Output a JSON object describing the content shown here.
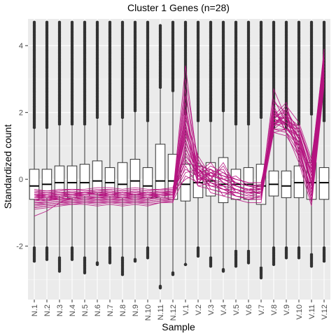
{
  "chart_data": {
    "type": "boxplot",
    "title": "Cluster 1 Genes (n=28)",
    "xlabel": "Sample",
    "ylabel": "Standardized count",
    "ylim": [
      -3.6,
      4.8
    ],
    "yticks": [
      -2,
      0,
      2,
      4
    ],
    "grid": true,
    "background": "#ebebeb",
    "line_color": "#b5137f",
    "categories": [
      "N.1",
      "N.2",
      "N.3",
      "N.4",
      "N.5",
      "N.6",
      "N.7",
      "N.8",
      "N.9",
      "N.10",
      "N.11",
      "N.12",
      "V.1",
      "V.2",
      "V.3",
      "V.4",
      "V.5",
      "V.6",
      "V.7",
      "V.8",
      "V.9",
      "V.10",
      "V.11",
      "V.12"
    ],
    "boxes": [
      {
        "q1": -0.6,
        "median": -0.2,
        "q3": 0.3,
        "whisker_low": -2.0,
        "whisker_high": 1.5,
        "outlier_low": -2.45,
        "outlier_high": 4.7
      },
      {
        "q1": -0.55,
        "median": -0.15,
        "q3": 0.3,
        "whisker_low": -2.0,
        "whisker_high": 1.5,
        "outlier_low": -2.4,
        "outlier_high": 4.7
      },
      {
        "q1": -0.5,
        "median": -0.1,
        "q3": 0.4,
        "whisker_low": -2.3,
        "whisker_high": 1.6,
        "outlier_low": -2.75,
        "outlier_high": 4.7
      },
      {
        "q1": -0.55,
        "median": -0.1,
        "q3": 0.4,
        "whisker_low": -2.0,
        "whisker_high": 1.6,
        "outlier_low": -2.4,
        "outlier_high": 4.7
      },
      {
        "q1": -0.5,
        "median": -0.1,
        "q3": 0.45,
        "whisker_low": -2.3,
        "whisker_high": 1.6,
        "outlier_low": -2.8,
        "outlier_high": 4.7
      },
      {
        "q1": -0.4,
        "median": -0.05,
        "q3": 0.55,
        "whisker_low": -2.5,
        "whisker_high": 1.8,
        "outlier_low": -2.5,
        "outlier_high": 4.7
      },
      {
        "q1": -0.5,
        "median": -0.1,
        "q3": 0.35,
        "whisker_low": -2.0,
        "whisker_high": 1.6,
        "outlier_low": -2.5,
        "outlier_high": 4.7
      },
      {
        "q1": -0.55,
        "median": -0.15,
        "q3": 0.5,
        "whisker_low": -2.3,
        "whisker_high": 1.8,
        "outlier_low": -2.85,
        "outlier_high": 4.7
      },
      {
        "q1": -0.45,
        "median": -0.05,
        "q3": 0.6,
        "whisker_low": -2.4,
        "whisker_high": 2.0,
        "outlier_low": -2.4,
        "outlier_high": 4.7
      },
      {
        "q1": -0.55,
        "median": -0.2,
        "q3": 0.35,
        "whisker_low": -2.0,
        "whisker_high": 1.7,
        "outlier_low": -2.35,
        "outlier_high": 4.7
      },
      {
        "q1": -0.55,
        "median": -0.05,
        "q3": 1.05,
        "whisker_low": -3.2,
        "whisker_high": 2.7,
        "outlier_low": -3.2,
        "outlier_high": 4.6
      },
      {
        "q1": -0.6,
        "median": -0.05,
        "q3": 0.75,
        "whisker_low": -2.8,
        "whisker_high": 2.6,
        "outlier_low": -2.8,
        "outlier_high": 4.7
      },
      {
        "q1": -0.65,
        "median": -0.15,
        "q3": 0.45,
        "whisker_low": -2.5,
        "whisker_high": 1.9,
        "outlier_low": -2.55,
        "outlier_high": 4.7
      },
      {
        "q1": -0.55,
        "median": -0.1,
        "q3": 0.4,
        "whisker_low": -2.0,
        "whisker_high": 1.7,
        "outlier_low": -2.3,
        "outlier_high": 4.7
      },
      {
        "q1": -0.5,
        "median": -0.05,
        "q3": 0.5,
        "whisker_low": -2.3,
        "whisker_high": 1.7,
        "outlier_low": -2.6,
        "outlier_high": 4.7
      },
      {
        "q1": -0.7,
        "median": -0.15,
        "q3": 0.65,
        "whisker_low": -2.7,
        "whisker_high": 2.0,
        "outlier_low": -2.7,
        "outlier_high": 4.7
      },
      {
        "q1": -0.6,
        "median": -0.15,
        "q3": 0.3,
        "whisker_low": -2.1,
        "whisker_high": 1.6,
        "outlier_low": -2.6,
        "outlier_high": 4.7
      },
      {
        "q1": -0.6,
        "median": -0.15,
        "q3": 0.35,
        "whisker_low": -2.1,
        "whisker_high": 1.6,
        "outlier_low": -2.5,
        "outlier_high": 4.7
      },
      {
        "q1": -0.75,
        "median": -0.2,
        "q3": 0.45,
        "whisker_low": -2.6,
        "whisker_high": 1.8,
        "outlier_low": -2.95,
        "outlier_high": 4.7
      },
      {
        "q1": -0.5,
        "median": -0.15,
        "q3": 0.25,
        "whisker_low": -2.0,
        "whisker_high": 1.5,
        "outlier_low": -2.55,
        "outlier_high": 4.7
      },
      {
        "q1": -0.55,
        "median": -0.2,
        "q3": 0.25,
        "whisker_low": -2.0,
        "whisker_high": 1.5,
        "outlier_low": -2.35,
        "outlier_high": 4.7
      },
      {
        "q1": -0.55,
        "median": -0.1,
        "q3": 0.4,
        "whisker_low": -2.0,
        "whisker_high": 1.6,
        "outlier_low": -2.35,
        "outlier_high": 4.7
      },
      {
        "q1": -0.6,
        "median": -0.1,
        "q3": 0.5,
        "whisker_low": -2.2,
        "whisker_high": 1.9,
        "outlier_low": -2.6,
        "outlier_high": 4.7
      },
      {
        "q1": -0.6,
        "median": -0.1,
        "q3": 0.35,
        "whisker_low": -2.0,
        "whisker_high": 1.7,
        "outlier_low": -2.45,
        "outlier_high": 4.7
      }
    ],
    "profile_lines": [
      [
        -0.55,
        -0.55,
        -0.5,
        -0.5,
        -0.45,
        -0.45,
        -0.5,
        -0.5,
        -0.45,
        -0.5,
        -0.45,
        -0.45,
        3.4,
        0.3,
        0.1,
        0.0,
        -0.2,
        -0.3,
        -0.3,
        1.8,
        2.1,
        1.4,
        0.2,
        3.6
      ],
      [
        -0.6,
        -0.6,
        -0.55,
        -0.5,
        -0.5,
        -0.55,
        -0.5,
        -0.55,
        -0.5,
        -0.55,
        -0.5,
        -0.5,
        3.0,
        0.5,
        0.2,
        -0.1,
        -0.3,
        -0.4,
        -0.4,
        2.7,
        1.8,
        1.2,
        -0.1,
        3.9
      ],
      [
        -0.45,
        -0.5,
        -0.45,
        -0.4,
        -0.45,
        -0.4,
        -0.4,
        -0.45,
        -0.4,
        -0.45,
        -0.4,
        -0.4,
        2.7,
        0.1,
        0.4,
        0.2,
        -0.1,
        -0.2,
        -0.2,
        2.0,
        1.6,
        1.5,
        0.4,
        3.5
      ],
      [
        -0.7,
        -0.65,
        -0.6,
        -0.6,
        -0.55,
        -0.6,
        -0.6,
        -0.6,
        -0.55,
        -0.6,
        -0.55,
        -0.55,
        2.5,
        0.6,
        -0.1,
        -0.3,
        -0.4,
        -0.5,
        -0.5,
        1.5,
        1.4,
        1.0,
        -0.5,
        3.2
      ],
      [
        -0.5,
        -0.55,
        -0.5,
        -0.45,
        -0.5,
        -0.5,
        -0.45,
        -0.5,
        -0.45,
        -0.5,
        -0.45,
        -0.45,
        2.3,
        0.0,
        0.0,
        0.4,
        -0.2,
        -0.3,
        -0.3,
        1.7,
        1.9,
        1.2,
        0.1,
        3.4
      ],
      [
        -0.8,
        -0.75,
        -0.7,
        -0.65,
        -0.65,
        -0.7,
        -0.65,
        -0.7,
        -0.65,
        -0.7,
        -0.65,
        -0.6,
        2.1,
        0.2,
        -0.2,
        -0.2,
        -0.5,
        -0.6,
        -0.5,
        2.3,
        2.0,
        0.6,
        -0.6,
        3.0
      ],
      [
        -0.4,
        -0.4,
        -0.4,
        -0.35,
        -0.4,
        -0.35,
        -0.35,
        -0.4,
        -0.35,
        -0.4,
        -0.35,
        -0.35,
        2.0,
        -0.1,
        0.3,
        0.1,
        0.0,
        -0.1,
        -0.1,
        1.6,
        1.7,
        1.6,
        0.5,
        3.7
      ],
      [
        -0.65,
        -0.6,
        -0.6,
        -0.55,
        -0.55,
        -0.6,
        -0.55,
        -0.6,
        -0.55,
        -0.6,
        -0.5,
        -0.5,
        1.9,
        0.4,
        -0.3,
        -0.4,
        -0.4,
        -0.5,
        -0.4,
        1.9,
        2.3,
        0.8,
        -0.3,
        3.3
      ],
      [
        -0.55,
        -0.5,
        -0.55,
        -0.5,
        -0.5,
        -0.5,
        -0.5,
        -0.5,
        -0.5,
        -0.5,
        -0.45,
        -0.45,
        1.8,
        0.7,
        0.1,
        -0.5,
        -0.3,
        -0.4,
        -0.3,
        1.4,
        1.5,
        1.3,
        -0.2,
        3.1
      ],
      [
        -0.75,
        -0.7,
        -0.65,
        -0.6,
        -0.6,
        -0.65,
        -0.6,
        -0.65,
        -0.6,
        -0.65,
        -0.6,
        -0.55,
        1.7,
        0.0,
        0.2,
        0.3,
        -0.4,
        -0.3,
        -0.45,
        2.1,
        1.6,
        0.9,
        -0.4,
        3.8
      ],
      [
        -0.35,
        -0.4,
        -0.35,
        -0.3,
        -0.35,
        -0.3,
        -0.3,
        -0.35,
        -0.3,
        -0.35,
        -0.3,
        -0.3,
        1.6,
        0.2,
        0.5,
        0.0,
        0.1,
        -0.2,
        -0.15,
        1.8,
        2.2,
        1.7,
        0.6,
        3.5
      ],
      [
        -0.85,
        -0.8,
        -0.75,
        -0.7,
        -0.7,
        -0.75,
        -0.7,
        -0.75,
        -0.7,
        -0.75,
        -0.7,
        -0.65,
        1.5,
        -0.2,
        -0.1,
        -0.2,
        -0.5,
        -0.6,
        -0.6,
        1.6,
        1.9,
        0.7,
        -0.7,
        2.9
      ],
      [
        -0.5,
        -0.45,
        -0.45,
        -0.45,
        -0.4,
        -0.45,
        -0.4,
        -0.45,
        -0.4,
        -0.45,
        -0.4,
        -0.4,
        1.5,
        0.3,
        0.0,
        0.5,
        -0.2,
        -0.35,
        -0.25,
        2.4,
        1.7,
        1.1,
        0.0,
        3.6
      ],
      [
        -0.6,
        -0.65,
        -0.55,
        -0.6,
        -0.55,
        -0.55,
        -0.55,
        -0.55,
        -0.55,
        -0.55,
        -0.5,
        -0.5,
        1.4,
        0.1,
        -0.2,
        -0.3,
        -0.3,
        -0.45,
        -0.35,
        1.7,
        1.5,
        1.4,
        -0.1,
        3.2
      ],
      [
        -1.1,
        -0.95,
        -0.7,
        -0.55,
        -0.5,
        -0.5,
        -0.4,
        -0.45,
        -0.4,
        -0.45,
        -0.5,
        -0.45,
        1.3,
        0.4,
        0.3,
        -0.1,
        -0.2,
        -0.3,
        -0.2,
        1.9,
        2.0,
        1.0,
        0.3,
        3.9
      ],
      [
        -0.3,
        -0.35,
        -0.3,
        -0.3,
        -0.3,
        -0.25,
        -0.25,
        -0.3,
        -0.25,
        -0.3,
        -0.3,
        -0.25,
        1.2,
        0.0,
        0.1,
        0.2,
        0.0,
        -0.1,
        -0.1,
        1.5,
        1.8,
        1.5,
        0.4,
        3.4
      ],
      [
        -0.9,
        -0.85,
        -0.8,
        -0.75,
        -0.75,
        -0.8,
        -0.75,
        -0.8,
        -0.75,
        -0.8,
        -0.7,
        -0.7,
        1.1,
        0.2,
        -0.4,
        -0.5,
        -0.6,
        -0.7,
        -0.7,
        2.2,
        1.4,
        0.5,
        -0.8,
        2.8
      ],
      [
        -0.45,
        -0.5,
        -0.5,
        -0.45,
        -0.45,
        -0.45,
        -0.45,
        -0.45,
        -0.45,
        -0.45,
        -0.45,
        -0.4,
        1.0,
        -0.1,
        0.2,
        0.0,
        -0.1,
        -0.2,
        -0.3,
        1.8,
        1.7,
        1.3,
        0.2,
        3.7
      ],
      [
        -0.55,
        -0.55,
        -0.6,
        -0.55,
        -0.55,
        -0.55,
        -0.5,
        -0.55,
        -0.5,
        -0.55,
        -0.5,
        -0.5,
        0.9,
        0.3,
        0.0,
        -0.2,
        -0.3,
        -0.4,
        -0.4,
        1.6,
        2.1,
        1.2,
        -0.1,
        3.3
      ],
      [
        -0.7,
        -0.7,
        -0.65,
        -0.65,
        -0.6,
        -0.6,
        -0.6,
        -0.6,
        -0.6,
        -0.6,
        -0.55,
        -0.55,
        0.8,
        0.1,
        -0.1,
        -0.3,
        -0.4,
        -0.5,
        -0.5,
        2.0,
        1.6,
        0.9,
        -0.3,
        3.0
      ],
      [
        -0.4,
        -0.45,
        -0.4,
        -0.4,
        -0.4,
        -0.4,
        -0.35,
        -0.4,
        -0.35,
        -0.4,
        -0.35,
        -0.35,
        0.7,
        0.2,
        0.3,
        0.1,
        -0.1,
        -0.2,
        -0.2,
        1.7,
        1.9,
        1.6,
        0.3,
        3.6
      ],
      [
        -0.65,
        -0.6,
        -0.6,
        -0.6,
        -0.55,
        -0.55,
        -0.55,
        -0.55,
        -0.55,
        -0.55,
        -0.5,
        -0.5,
        0.6,
        0.0,
        0.0,
        -0.1,
        -0.3,
        -0.4,
        -0.4,
        1.5,
        1.5,
        1.1,
        -0.2,
        3.2
      ],
      [
        -0.5,
        -0.5,
        -0.45,
        -0.45,
        -0.45,
        -0.45,
        -0.45,
        -0.45,
        -0.45,
        -0.45,
        -0.45,
        -0.4,
        0.5,
        0.4,
        0.1,
        0.0,
        -0.2,
        -0.3,
        -0.3,
        1.9,
        1.8,
        1.4,
        0.1,
        3.5
      ],
      [
        -0.75,
        -0.75,
        -0.7,
        -0.7,
        -0.65,
        -0.65,
        -0.65,
        -0.65,
        -0.65,
        -0.65,
        -0.6,
        -0.6,
        0.4,
        -0.2,
        -0.3,
        -0.4,
        -0.5,
        -0.6,
        -0.6,
        1.4,
        1.3,
        0.7,
        -0.6,
        2.9
      ],
      [
        -0.35,
        -0.35,
        -0.35,
        -0.3,
        -0.35,
        -0.35,
        -0.3,
        -0.35,
        -0.3,
        -0.35,
        -0.3,
        -0.3,
        0.3,
        0.1,
        0.2,
        0.1,
        0.0,
        -0.1,
        -0.1,
        1.6,
        2.0,
        1.5,
        0.5,
        3.8
      ],
      [
        -0.6,
        -0.55,
        -0.55,
        -0.5,
        -0.5,
        -0.5,
        -0.5,
        -0.5,
        -0.5,
        -0.5,
        -0.5,
        -0.45,
        0.2,
        0.3,
        -0.1,
        -0.2,
        -0.3,
        -0.4,
        -0.4,
        1.8,
        1.6,
        1.0,
        -0.1,
        3.4
      ],
      [
        -0.85,
        -0.8,
        -0.75,
        -0.75,
        -0.7,
        -0.7,
        -0.7,
        -0.7,
        -0.7,
        -0.7,
        -0.65,
        -0.65,
        0.1,
        -0.1,
        -0.2,
        -0.3,
        -0.5,
        -0.55,
        -0.55,
        2.1,
        1.4,
        0.8,
        -0.5,
        3.1
      ],
      [
        -0.45,
        -0.45,
        -0.4,
        -0.4,
        -0.4,
        -0.4,
        -0.4,
        -0.4,
        -0.4,
        -0.4,
        -0.4,
        -0.35,
        0.0,
        0.2,
        0.1,
        0.0,
        -0.1,
        -0.2,
        -0.2,
        1.7,
        1.7,
        1.3,
        0.2,
        3.6
      ]
    ]
  }
}
